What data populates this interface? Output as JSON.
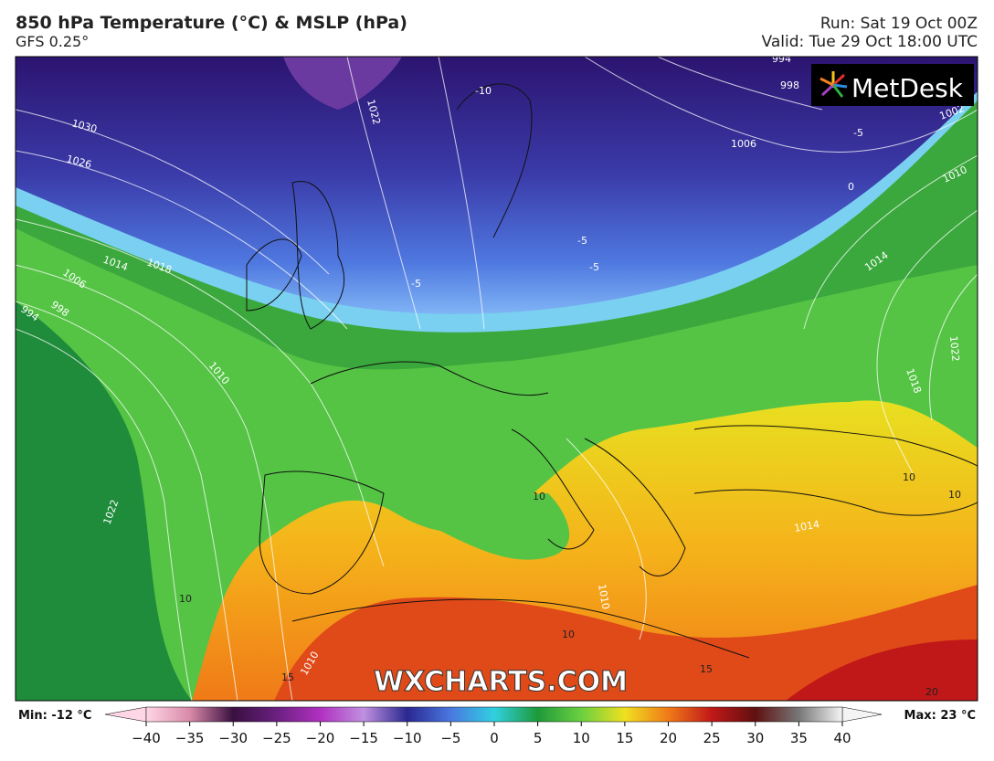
{
  "header": {
    "title": "850 hPa Temperature (°C) & MSLP (hPa)",
    "model": "GFS 0.25°",
    "run": "Run: Sat 19 Oct 00Z",
    "valid": "Valid: Tue 29 Oct 18:00 UTC"
  },
  "logo": "MetDesk",
  "watermark": "WXCHARTS.COM",
  "map": {
    "isobar_labels": [
      "994",
      "998",
      "1006",
      "1002",
      "1010",
      "1014",
      "1018",
      "1022",
      "1030",
      "1026",
      "1022",
      "1014",
      "1018",
      "1006",
      "998",
      "994",
      "1010",
      "1022",
      "1010",
      "1014",
      "1010"
    ],
    "isotherm_labels": [
      "-10",
      "-5",
      "0",
      "-5",
      "-5",
      "-5",
      "10",
      "10",
      "10",
      "10",
      "10",
      "15",
      "15",
      "20"
    ]
  },
  "colorbar": {
    "min_label": "Min: -12 °C",
    "max_label": "Max: 23 °C",
    "range": [
      -40,
      40
    ],
    "ticks": [
      {
        "value": -40,
        "label": "−40"
      },
      {
        "value": -35,
        "label": "−35"
      },
      {
        "value": -30,
        "label": "−30"
      },
      {
        "value": -25,
        "label": "−25"
      },
      {
        "value": -20,
        "label": "−20"
      },
      {
        "value": -15,
        "label": "−15"
      },
      {
        "value": -10,
        "label": "−10"
      },
      {
        "value": -5,
        "label": "−5"
      },
      0,
      5,
      10,
      15,
      20,
      25,
      30,
      35,
      40
    ]
  }
}
